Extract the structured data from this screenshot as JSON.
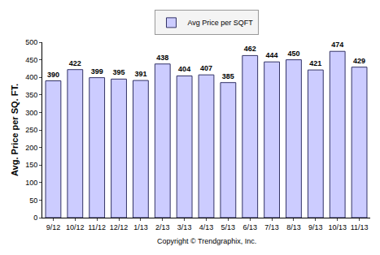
{
  "chart_data": {
    "type": "bar",
    "y_label": "Avg. Price per SQ. FT.",
    "categories": [
      "9/12",
      "10/12",
      "11/12",
      "12/12",
      "1/13",
      "2/13",
      "3/13",
      "4/13",
      "5/13",
      "6/13",
      "7/13",
      "8/13",
      "9/13",
      "10/13",
      "11/13"
    ],
    "series": [
      {
        "name": "Avg Price per SQFT",
        "color": "#ccccff",
        "values": [
          390,
          422,
          399,
          395,
          391,
          438,
          404,
          407,
          385,
          462,
          444,
          450,
          421,
          474,
          429
        ]
      }
    ],
    "ylim": [
      0,
      500
    ],
    "yticks": [
      0,
      50,
      100,
      150,
      200,
      250,
      300,
      350,
      400,
      450,
      500
    ],
    "grid": false,
    "legend": "top",
    "data_labels": true,
    "caption": "Copyright © Trendgraphix, Inc."
  }
}
